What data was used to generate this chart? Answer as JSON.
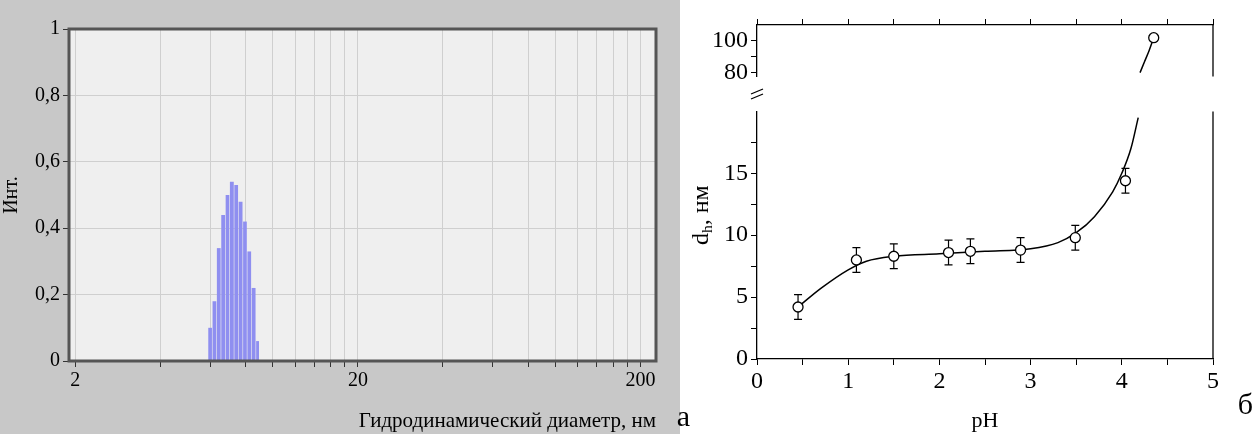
{
  "chart_data": [
    {
      "type": "histogram",
      "ylabel": "Инт.",
      "xlabel": "Гидродинамический диаметр, нм",
      "annotations": [
        "а"
      ],
      "bins": [
        5.91,
        6.12,
        6.34,
        6.57,
        6.81,
        7.05,
        7.31,
        7.57,
        7.85,
        8.13,
        8.42,
        8.73,
        8.98
      ],
      "values": [
        0.1,
        0.18,
        0.34,
        0.44,
        0.5,
        0.54,
        0.53,
        0.48,
        0.42,
        0.33,
        0.22,
        0.06
      ],
      "color": "#8f8ff0",
      "log": "x",
      "xlim": [
        1.9,
        227
      ],
      "xticks": [
        2,
        {
          "value": 4,
          "label": null
        },
        {
          "value": 6,
          "label": null
        },
        {
          "value": 8,
          "label": null
        },
        {
          "value": 10,
          "label": null
        },
        {
          "value": 12,
          "label": null
        },
        {
          "value": 14,
          "label": null
        },
        {
          "value": 16,
          "label": null
        },
        {
          "value": 18,
          "label": null
        },
        20,
        {
          "value": 40,
          "label": null
        },
        {
          "value": 60,
          "label": null
        },
        {
          "value": 80,
          "label": null
        },
        {
          "value": 100,
          "label": null
        },
        {
          "value": 120,
          "label": null
        },
        {
          "value": 140,
          "label": null
        },
        {
          "value": 160,
          "label": null
        },
        {
          "value": 180,
          "label": null
        },
        200
      ],
      "ylim": [
        0,
        1
      ],
      "yticks": [
        0,
        {
          "value": 0.2,
          "label": "0,2"
        },
        {
          "value": 0.4,
          "label": "0,4"
        },
        {
          "value": 0.6,
          "label": "0,6"
        },
        {
          "value": 0.8,
          "label": "0,8"
        },
        1
      ],
      "grid": true
    },
    {
      "type": "scatter",
      "series": [
        {
          "type": "scatter",
          "color": "#000000",
          "marker": "circle",
          "x": [
            4.35
          ],
          "values": [
            102
          ]
        },
        {
          "type": "line",
          "color": "#000000",
          "marker": "none",
          "x": [
            4.2,
            4.25,
            4.3,
            4.35
          ],
          "values": [
            80,
            87,
            94,
            102
          ]
        }
      ],
      "xlim": [
        0,
        5
      ],
      "xticks": [
        0,
        {
          "value": 0.5,
          "label": null
        },
        1,
        {
          "value": 1.5,
          "label": null
        },
        2,
        {
          "value": 2.5,
          "label": null
        },
        3,
        {
          "value": 3.5,
          "label": null
        },
        4,
        {
          "value": 4.5,
          "label": null
        },
        5
      ],
      "ylim": [
        77.5,
        110
      ],
      "yticks": [
        80,
        {
          "value": 90,
          "label": null
        },
        100
      ],
      "tick_labels": "y"
    },
    {
      "type": "scatter",
      "xlabel": "pH",
      "ylabel": "d$_{h}$, нм",
      "annotations": [
        "б"
      ],
      "series": [
        {
          "type": "scatter",
          "color": "#000000",
          "marker": "circle",
          "x": [
            0.45,
            1.09,
            1.5,
            2.1,
            2.34,
            2.89,
            3.49,
            4.04
          ],
          "values": [
            4.2,
            8.0,
            8.3,
            8.6,
            8.7,
            8.8,
            9.8,
            14.4
          ],
          "errors": [
            1,
            1,
            1,
            1,
            1,
            1,
            1,
            1
          ]
        },
        {
          "type": "line",
          "color": "#000000",
          "marker": "none",
          "x": [
            0.45,
            0.7,
            1.0,
            1.2,
            1.5,
            2.0,
            2.5,
            3.0,
            3.3,
            3.5,
            3.7,
            3.9,
            4.0,
            4.1,
            4.18
          ],
          "values": [
            4.2,
            5.7,
            7.2,
            7.9,
            8.3,
            8.5,
            8.7,
            8.9,
            9.4,
            10.2,
            11.5,
            13.5,
            15,
            17,
            19.5
          ]
        }
      ],
      "xlim": [
        0,
        5
      ],
      "xticks": [
        0,
        {
          "value": 0.5,
          "label": null
        },
        1,
        {
          "value": 1.5,
          "label": null
        },
        2,
        {
          "value": 2.5,
          "label": null
        },
        3,
        {
          "value": 3.5,
          "label": null
        },
        4,
        {
          "value": 4.5,
          "label": null
        },
        5
      ],
      "ylim": [
        0,
        20
      ],
      "yticks": [
        0,
        {
          "value": 2.5,
          "label": null
        },
        5,
        {
          "value": 7.5,
          "label": null
        },
        10,
        {
          "value": 12.5,
          "label": null
        },
        15,
        {
          "value": 17.5,
          "label": null
        }
      ]
    }
  ]
}
